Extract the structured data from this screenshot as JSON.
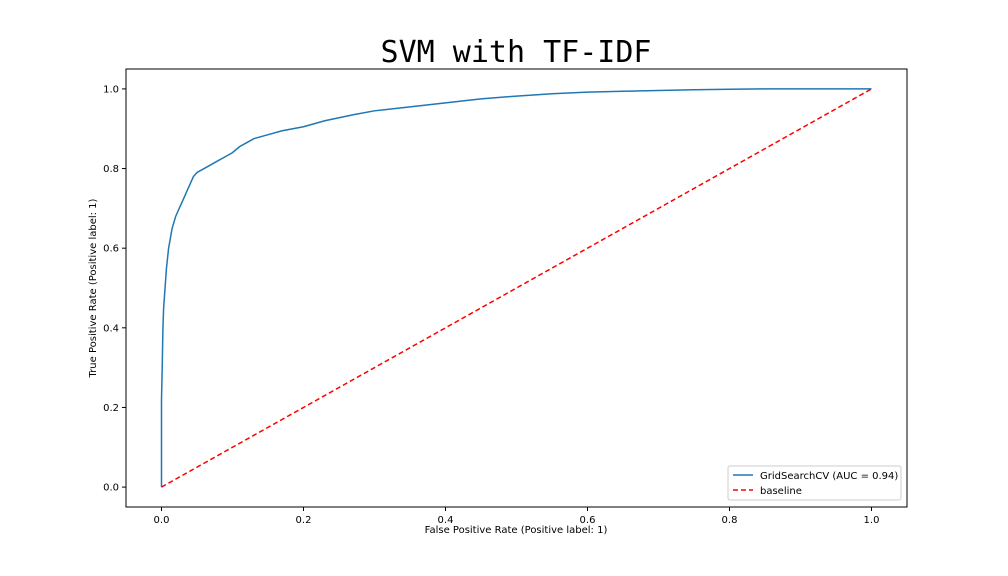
{
  "chart_data": {
    "type": "line",
    "title": "SVM with TF-IDF",
    "xlabel": "False Positive Rate (Positive label: 1)",
    "ylabel": "True Positive Rate (Positive label: 1)",
    "xlim": [
      -0.05,
      1.05
    ],
    "ylim": [
      -0.05,
      1.05
    ],
    "xticks": [
      0.0,
      0.2,
      0.4,
      0.6,
      0.8,
      1.0
    ],
    "yticks": [
      0.0,
      0.2,
      0.4,
      0.6,
      0.8,
      1.0
    ],
    "xtick_labels": [
      "0.0",
      "0.2",
      "0.4",
      "0.6",
      "0.8",
      "1.0"
    ],
    "ytick_labels": [
      "0.0",
      "0.2",
      "0.4",
      "0.6",
      "0.8",
      "1.0"
    ],
    "grid": false,
    "legend_position": "lower-right",
    "series": [
      {
        "name": "GridSearchCV (AUC = 0.94)",
        "color": "#1f77b4",
        "style": "solid",
        "x": [
          0.0,
          0.0,
          0.001,
          0.002,
          0.003,
          0.005,
          0.007,
          0.01,
          0.012,
          0.015,
          0.02,
          0.025,
          0.03,
          0.035,
          0.04,
          0.045,
          0.05,
          0.06,
          0.07,
          0.08,
          0.09,
          0.1,
          0.11,
          0.12,
          0.13,
          0.15,
          0.17,
          0.2,
          0.23,
          0.27,
          0.3,
          0.35,
          0.4,
          0.45,
          0.5,
          0.55,
          0.6,
          0.65,
          0.7,
          0.75,
          0.8,
          0.85,
          0.9,
          1.0
        ],
        "y": [
          0.0,
          0.22,
          0.3,
          0.4,
          0.45,
          0.5,
          0.55,
          0.6,
          0.62,
          0.65,
          0.68,
          0.7,
          0.72,
          0.74,
          0.76,
          0.78,
          0.79,
          0.8,
          0.81,
          0.82,
          0.83,
          0.84,
          0.855,
          0.865,
          0.875,
          0.885,
          0.895,
          0.905,
          0.92,
          0.935,
          0.945,
          0.955,
          0.965,
          0.975,
          0.982,
          0.988,
          0.992,
          0.994,
          0.996,
          0.998,
          0.999,
          1.0,
          1.0,
          1.0
        ]
      },
      {
        "name": "baseline",
        "color": "#ff0000",
        "style": "dashed",
        "x": [
          0.0,
          1.0
        ],
        "y": [
          0.0,
          1.0
        ]
      }
    ]
  }
}
